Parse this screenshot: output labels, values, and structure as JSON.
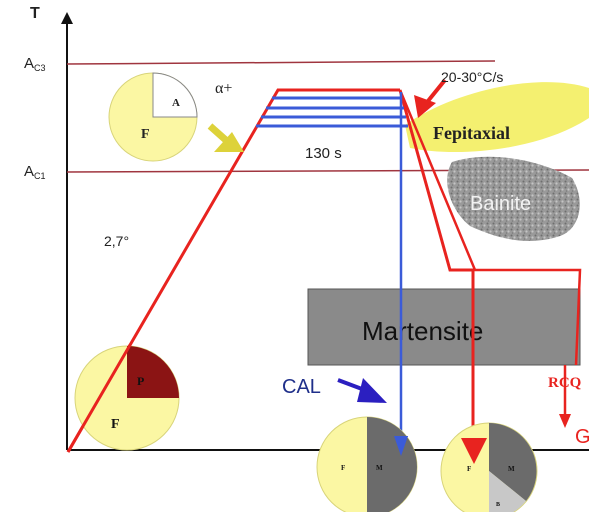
{
  "axes": {
    "y_label": "T",
    "ac3": {
      "base": "A",
      "sub": "C3"
    },
    "ac1": {
      "base": "A",
      "sub": "C1"
    }
  },
  "labels": {
    "heating_rate": "2,7°",
    "alpha_plus": "α+",
    "hold_time": "130 s",
    "cooling_rate": "20-30°C/s",
    "fepitaxial": "Fepitaxial",
    "bainite": "Bainite",
    "martensite": "Martensite",
    "cal": "CAL",
    "rcq": "RCQ",
    "g": "G"
  },
  "pies": {
    "upper_left": {
      "a": "A",
      "f": "F"
    },
    "lower_left": {
      "p": "P",
      "f": "F"
    },
    "bottom_center": {
      "f": "F",
      "m": "M"
    },
    "bottom_right": {
      "f": "F",
      "m": "M",
      "b": "B"
    }
  },
  "colors": {
    "red_path": "#e8231f",
    "blue_path": "#3b5bd8",
    "temp_line": "#a0353f",
    "pie_yellow": "#fbf7a3",
    "martensite_gray": "#8a8a8a",
    "arrow_navy": "#2b1fc0",
    "fepitaxial_yellow": "#f4f070"
  }
}
